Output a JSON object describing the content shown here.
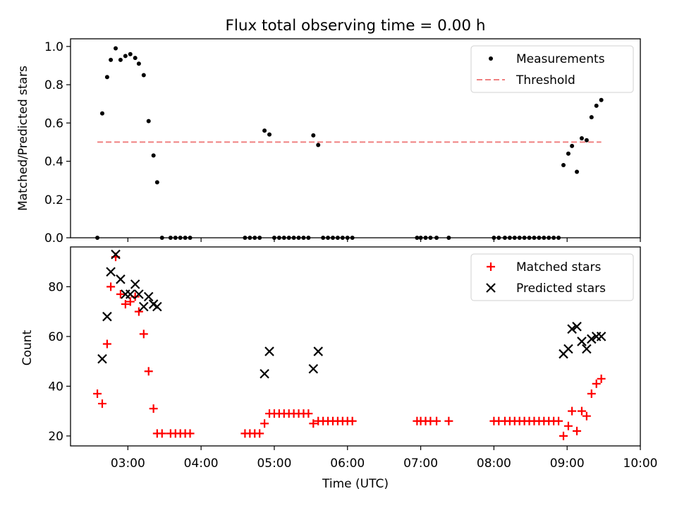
{
  "chart_data": [
    {
      "type": "scatter",
      "title": "Flux total observing time = 0.00 h",
      "xlabel": "",
      "ylabel": "Matched/Predicted stars",
      "xlim": [
        "02:13",
        "10:00"
      ],
      "ylim": [
        0,
        1.04
      ],
      "yticks": [
        0,
        0.2,
        0.4,
        0.6,
        0.8,
        1.0
      ],
      "ytick_labels": [
        "0.0",
        "0.2",
        "0.4",
        "0.6",
        "0.8",
        "1.0"
      ],
      "legend_position": "top-right",
      "series": [
        {
          "name": "Measurements",
          "style": "dots",
          "color": "#000000",
          "points": [
            [
              "02:35",
              0.0
            ],
            [
              "02:39",
              0.65
            ],
            [
              "02:43",
              0.84
            ],
            [
              "02:46",
              0.93
            ],
            [
              "02:50",
              0.99
            ],
            [
              "02:54",
              0.93
            ],
            [
              "02:58",
              0.95
            ],
            [
              "03:02",
              0.96
            ],
            [
              "03:06",
              0.94
            ],
            [
              "03:09",
              0.91
            ],
            [
              "03:13",
              0.85
            ],
            [
              "03:17",
              0.61
            ],
            [
              "03:21",
              0.43
            ],
            [
              "03:24",
              0.29
            ],
            [
              "03:28",
              0.0
            ],
            [
              "03:35",
              0.0
            ],
            [
              "03:39",
              0.0
            ],
            [
              "03:43",
              0.0
            ],
            [
              "03:47",
              0.0
            ],
            [
              "03:51",
              0.0
            ],
            [
              "04:36",
              0.0
            ],
            [
              "04:40",
              0.0
            ],
            [
              "04:44",
              0.0
            ],
            [
              "04:48",
              0.0
            ],
            [
              "04:52",
              0.56
            ],
            [
              "04:56",
              0.54
            ],
            [
              "05:00",
              0.0
            ],
            [
              "05:04",
              0.0
            ],
            [
              "05:08",
              0.0
            ],
            [
              "05:12",
              0.0
            ],
            [
              "05:16",
              0.0
            ],
            [
              "05:20",
              0.0
            ],
            [
              "05:24",
              0.0
            ],
            [
              "05:28",
              0.0
            ],
            [
              "05:32",
              0.535
            ],
            [
              "05:36",
              0.485
            ],
            [
              "05:40",
              0.0
            ],
            [
              "05:44",
              0.0
            ],
            [
              "05:48",
              0.0
            ],
            [
              "05:52",
              0.0
            ],
            [
              "05:56",
              0.0
            ],
            [
              "06:00",
              0.0
            ],
            [
              "06:04",
              0.0
            ],
            [
              "06:57",
              0.0
            ],
            [
              "07:00",
              0.0
            ],
            [
              "07:04",
              0.0
            ],
            [
              "07:08",
              0.0
            ],
            [
              "07:13",
              0.0
            ],
            [
              "07:23",
              0.0
            ],
            [
              "08:00",
              0.0
            ],
            [
              "08:04",
              0.0
            ],
            [
              "08:09",
              0.0
            ],
            [
              "08:13",
              0.0
            ],
            [
              "08:17",
              0.0
            ],
            [
              "08:21",
              0.0
            ],
            [
              "08:25",
              0.0
            ],
            [
              "08:29",
              0.0
            ],
            [
              "08:33",
              0.0
            ],
            [
              "08:37",
              0.0
            ],
            [
              "08:41",
              0.0
            ],
            [
              "08:45",
              0.0
            ],
            [
              "08:49",
              0.0
            ],
            [
              "08:53",
              0.0
            ],
            [
              "08:57",
              0.38
            ],
            [
              "09:01",
              0.44
            ],
            [
              "09:04",
              0.48
            ],
            [
              "09:08",
              0.345
            ],
            [
              "09:12",
              0.52
            ],
            [
              "09:16",
              0.51
            ],
            [
              "09:20",
              0.63
            ],
            [
              "09:24",
              0.69
            ],
            [
              "09:28",
              0.72
            ]
          ]
        },
        {
          "name": "Threshold",
          "style": "dashed-line",
          "color": "#f08080",
          "points": [
            [
              "02:35",
              0.5
            ],
            [
              "09:28",
              0.5
            ]
          ]
        }
      ]
    },
    {
      "type": "scatter",
      "title": "",
      "xlabel": "Time (UTC)",
      "ylabel": "Count",
      "xlim": [
        "02:13",
        "10:00"
      ],
      "ylim": [
        16,
        96
      ],
      "yticks": [
        20,
        40,
        60,
        80
      ],
      "ytick_labels": [
        "20",
        "40",
        "60",
        "80"
      ],
      "xticks": [
        "03:00",
        "04:00",
        "05:00",
        "06:00",
        "07:00",
        "08:00",
        "09:00",
        "10:00"
      ],
      "xtick_labels": [
        "03:00",
        "04:00",
        "05:00",
        "06:00",
        "07:00",
        "08:00",
        "09:00",
        "10:00"
      ],
      "legend_position": "top-right",
      "series": [
        {
          "name": "Matched stars",
          "style": "plus",
          "color": "#ff0000",
          "points": [
            [
              "02:35",
              37
            ],
            [
              "02:39",
              33
            ],
            [
              "02:43",
              57
            ],
            [
              "02:46",
              80
            ],
            [
              "02:50",
              92
            ],
            [
              "02:54",
              77
            ],
            [
              "02:58",
              73
            ],
            [
              "03:02",
              74
            ],
            [
              "03:06",
              76
            ],
            [
              "03:09",
              70
            ],
            [
              "03:13",
              61
            ],
            [
              "03:17",
              46
            ],
            [
              "03:21",
              31
            ],
            [
              "03:24",
              21
            ],
            [
              "03:28",
              21
            ],
            [
              "03:35",
              21
            ],
            [
              "03:39",
              21
            ],
            [
              "03:43",
              21
            ],
            [
              "03:47",
              21
            ],
            [
              "03:51",
              21
            ],
            [
              "04:36",
              21
            ],
            [
              "04:40",
              21
            ],
            [
              "04:44",
              21
            ],
            [
              "04:48",
              21
            ],
            [
              "04:52",
              25
            ],
            [
              "04:56",
              29
            ],
            [
              "05:00",
              29
            ],
            [
              "05:04",
              29
            ],
            [
              "05:08",
              29
            ],
            [
              "05:12",
              29
            ],
            [
              "05:16",
              29
            ],
            [
              "05:20",
              29
            ],
            [
              "05:24",
              29
            ],
            [
              "05:28",
              29
            ],
            [
              "05:32",
              25
            ],
            [
              "05:36",
              26
            ],
            [
              "05:40",
              26
            ],
            [
              "05:44",
              26
            ],
            [
              "05:48",
              26
            ],
            [
              "05:52",
              26
            ],
            [
              "05:56",
              26
            ],
            [
              "06:00",
              26
            ],
            [
              "06:04",
              26
            ],
            [
              "06:57",
              26
            ],
            [
              "07:00",
              26
            ],
            [
              "07:04",
              26
            ],
            [
              "07:08",
              26
            ],
            [
              "07:13",
              26
            ],
            [
              "07:23",
              26
            ],
            [
              "08:00",
              26
            ],
            [
              "08:04",
              26
            ],
            [
              "08:09",
              26
            ],
            [
              "08:13",
              26
            ],
            [
              "08:17",
              26
            ],
            [
              "08:21",
              26
            ],
            [
              "08:25",
              26
            ],
            [
              "08:29",
              26
            ],
            [
              "08:33",
              26
            ],
            [
              "08:37",
              26
            ],
            [
              "08:41",
              26
            ],
            [
              "08:45",
              26
            ],
            [
              "08:49",
              26
            ],
            [
              "08:53",
              26
            ],
            [
              "08:57",
              20
            ],
            [
              "09:01",
              24
            ],
            [
              "09:04",
              30
            ],
            [
              "09:08",
              22
            ],
            [
              "09:12",
              30
            ],
            [
              "09:16",
              28
            ],
            [
              "09:20",
              37
            ],
            [
              "09:24",
              41
            ],
            [
              "09:28",
              43
            ]
          ]
        },
        {
          "name": "Predicted stars",
          "style": "x",
          "color": "#000000",
          "points": [
            [
              "02:39",
              51
            ],
            [
              "02:43",
              68
            ],
            [
              "02:46",
              86
            ],
            [
              "02:50",
              93
            ],
            [
              "02:54",
              83
            ],
            [
              "02:58",
              77
            ],
            [
              "03:02",
              77
            ],
            [
              "03:06",
              81
            ],
            [
              "03:09",
              77
            ],
            [
              "03:13",
              72
            ],
            [
              "03:17",
              76
            ],
            [
              "03:21",
              73
            ],
            [
              "03:24",
              72
            ],
            [
              "04:52",
              45
            ],
            [
              "04:56",
              54
            ],
            [
              "05:32",
              47
            ],
            [
              "05:36",
              54
            ],
            [
              "08:57",
              53
            ],
            [
              "09:01",
              55
            ],
            [
              "09:04",
              63
            ],
            [
              "09:08",
              64
            ],
            [
              "09:12",
              58
            ],
            [
              "09:16",
              55
            ],
            [
              "09:20",
              59
            ],
            [
              "09:24",
              60
            ],
            [
              "09:28",
              60
            ]
          ]
        }
      ]
    }
  ]
}
